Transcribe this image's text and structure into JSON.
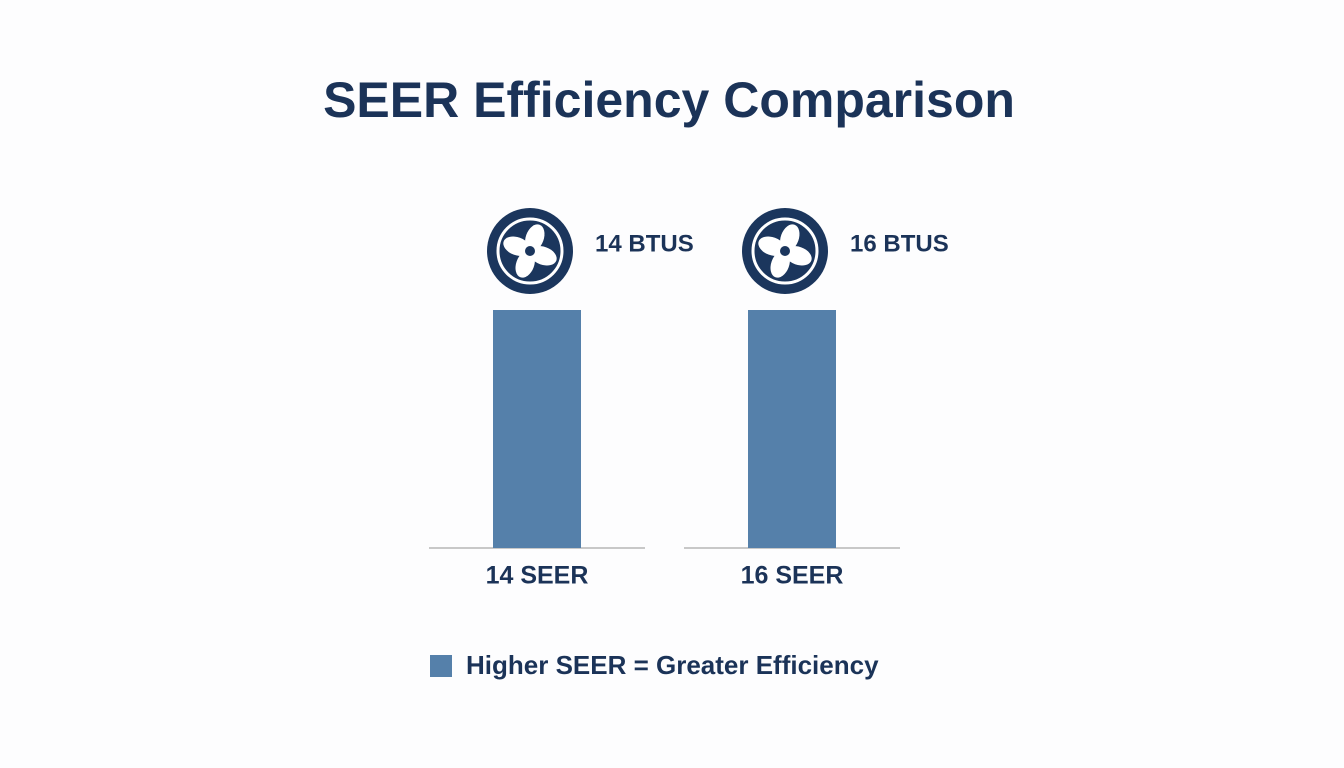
{
  "title": "SEER Efficiency Comparison",
  "items": [
    {
      "label": "14 SEER",
      "badge": "14 BTUS"
    },
    {
      "label": "16 SEER",
      "badge": "16 BTUS"
    }
  ],
  "legend": {
    "text": "Higher SEER = Greater Efficiency"
  }
}
